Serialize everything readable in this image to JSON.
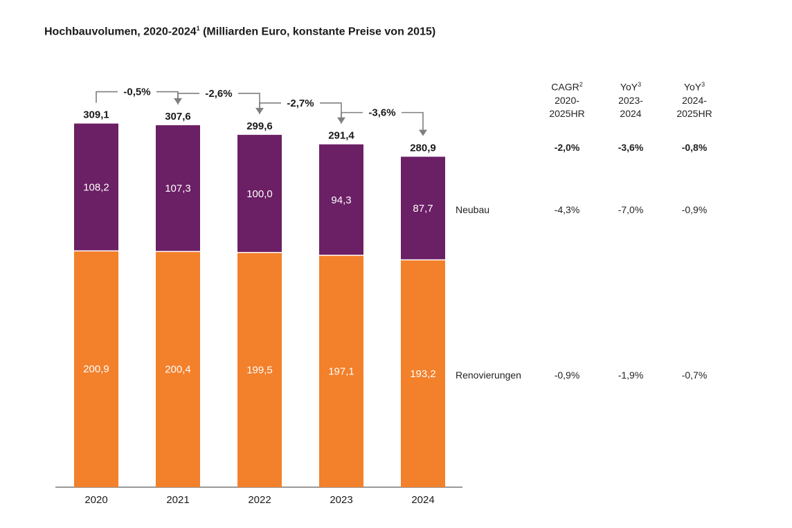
{
  "title": "Hochbauvolumen, 2020-2024",
  "title_sup": "1",
  "title_rest": " (Milliarden Euro, konstante Preise von 2015)",
  "colors": {
    "neubau": "#6b1f65",
    "renovierungen": "#f3802b",
    "arrow": "#7f7f7f"
  },
  "chart_data": {
    "type": "bar",
    "stacked": true,
    "categories": [
      "2020",
      "2021",
      "2022",
      "2023",
      "2024"
    ],
    "series": [
      {
        "name": "Renovierungen",
        "values": [
          200.9,
          200.4,
          199.5,
          197.1,
          193.2
        ],
        "labels": [
          "200,9",
          "200,4",
          "199,5",
          "197,1",
          "193,2"
        ]
      },
      {
        "name": "Neubau",
        "values": [
          108.2,
          107.3,
          100.0,
          94.3,
          87.7
        ],
        "labels": [
          "108,2",
          "107,3",
          "100,0",
          "94,3",
          "87,7"
        ]
      }
    ],
    "totals": [
      309.1,
      307.6,
      299.6,
      291.4,
      280.9
    ],
    "total_labels": [
      "309,1",
      "307,6",
      "299,6",
      "291,4",
      "280,9"
    ],
    "changes": [
      "-0,5%",
      "-2,6%",
      "-2,7%",
      "-3,6%"
    ],
    "ylim": [
      0,
      330
    ]
  },
  "stats": {
    "headers": [
      {
        "line1": "CAGR",
        "sup": "2",
        "line2": "2020-",
        "line3": "2025HR"
      },
      {
        "line1": "YoY",
        "sup": "3",
        "line2": "2023-",
        "line3": "2024"
      },
      {
        "line1": "YoY",
        "sup": "3",
        "line2": "2024-",
        "line3": "2025HR"
      }
    ],
    "total": [
      "-2,0%",
      "-3,6%",
      "-0,8%"
    ],
    "neubau": [
      "-4,3%",
      "-7,0%",
      "-0,9%"
    ],
    "renovierungen": [
      "-0,9%",
      "-1,9%",
      "-0,7%"
    ]
  },
  "row_labels": {
    "neubau": "Neubau",
    "renovierungen": "Renovierungen"
  }
}
